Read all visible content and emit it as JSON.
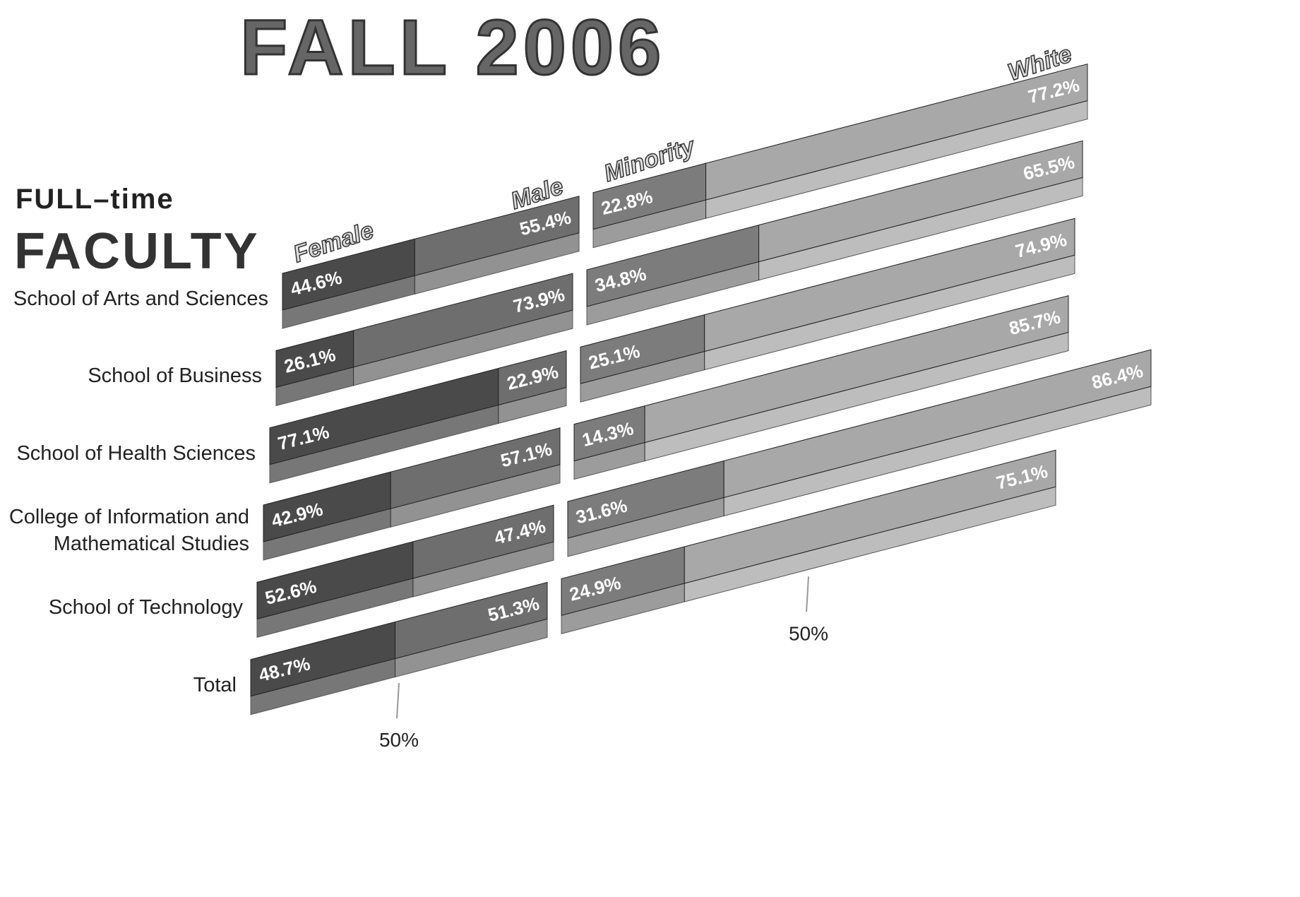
{
  "chart_data": {
    "type": "bar",
    "title": "FALL 2006",
    "subtitle": [
      "FULL–time",
      "FACULTY"
    ],
    "categories": [
      "School of Arts and Sciences",
      "School of Business",
      "School of Health Sciences",
      "College of Information and Mathematical Studies",
      "School of Technology",
      "Total"
    ],
    "panels": [
      {
        "xlim": [
          0,
          100
        ],
        "xticks": [
          {
            "value": 50,
            "label": "50%"
          }
        ],
        "series": [
          {
            "name": "Female",
            "color": "#4a4a4a",
            "values": [
              44.6,
              26.1,
              77.1,
              42.9,
              52.6,
              48.7
            ],
            "value_labels": [
              "44.6%",
              "26.1%",
              "77.1%",
              "42.9%",
              "52.6%",
              "48.7%"
            ]
          },
          {
            "name": "Male",
            "color": "#6e6e6e",
            "values": [
              55.4,
              73.9,
              22.9,
              57.1,
              47.4,
              51.3
            ],
            "value_labels": [
              "55.4%",
              "73.9%",
              "22.9%",
              "57.1%",
              "47.4%",
              "51.3%"
            ]
          }
        ]
      },
      {
        "xlim": [
          0,
          100
        ],
        "xticks": [
          {
            "value": 50,
            "label": "50%"
          }
        ],
        "series": [
          {
            "name": "Minority",
            "color": "#7c7c7c",
            "values": [
              22.8,
              34.8,
              25.1,
              14.3,
              31.6,
              24.9
            ],
            "value_labels": [
              "22.8%",
              "34.8%",
              "25.1%",
              "14.3%",
              "31.6%",
              "24.9%"
            ]
          },
          {
            "name": "White",
            "color": "#a8a8a8",
            "values": [
              77.2,
              65.5,
              74.9,
              85.7,
              86.4,
              75.1
            ],
            "value_labels": [
              "77.2%",
              "65.5%",
              "74.9%",
              "85.7%",
              "86.4%",
              "75.1%"
            ]
          }
        ]
      }
    ]
  }
}
